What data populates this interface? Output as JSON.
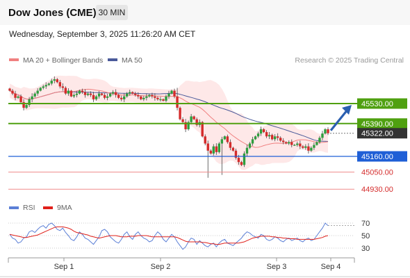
{
  "header": {
    "title": "Dow Jones (CME)",
    "timeframe": "30 MIN"
  },
  "datetime": "Wednesday, September 3, 2025 11:26:20 AM CET",
  "copyright": "Research © 2025 Trading Central",
  "colors": {
    "up": "#2e9e3e",
    "down": "#d42b2b",
    "support": "#1f5fd6",
    "resistance": "#4fa010",
    "band": "#fde0e0",
    "ma20": "#f08080",
    "ma50": "#4a5a9a",
    "rsi": "#5b7fd6",
    "rsi_ma": "#e0201a"
  },
  "chart_data": [
    {
      "type": "candlestick",
      "title": "Dow Jones (CME)",
      "legend": [
        {
          "name": "MA 20 + Bollinger Bands",
          "color": "#f08080"
        },
        {
          "name": "MA 50",
          "color": "#4a5a9a"
        }
      ],
      "ylim": [
        44900,
        45800
      ],
      "x_ticks": [
        "Sep 1",
        "Sep 2",
        "Sep 3",
        "Sep 4"
      ],
      "levels": [
        {
          "value": 45530.0,
          "label": "45530.00",
          "kind": "resistance"
        },
        {
          "value": 45390.0,
          "label": "45390.00",
          "kind": "resistance"
        },
        {
          "value": 45322.0,
          "label": "45322.00",
          "kind": "last"
        },
        {
          "value": 45160.0,
          "label": "45160.00",
          "kind": "support"
        },
        {
          "value": 45050.0,
          "label": "45050.00",
          "kind": "support-minor"
        },
        {
          "value": 44930.0,
          "label": "44930.00",
          "kind": "support-minor"
        }
      ],
      "closes": [
        45620,
        45600,
        45570,
        45580,
        45540,
        45500,
        45520,
        45560,
        45580,
        45600,
        45620,
        45640,
        45650,
        45660,
        45670,
        45690,
        45700,
        45680,
        45650,
        45640,
        45600,
        45620,
        45580,
        45590,
        45600,
        45620,
        45610,
        45590,
        45600,
        45590,
        45560,
        45580,
        45600,
        45590,
        45570,
        45580,
        45600,
        45610,
        45590,
        45570,
        45560,
        45580,
        45600,
        45610,
        45600,
        45590,
        45580,
        45560,
        45570,
        45580,
        45590,
        45580,
        45570,
        45560,
        45560,
        45550,
        45580,
        45600,
        45620,
        45580,
        45500,
        45420,
        45400,
        45350,
        45400,
        45440,
        45420,
        45380,
        45400,
        45300,
        45250,
        45200,
        45180,
        45230,
        45190,
        45250,
        45280,
        45300,
        45260,
        45220,
        45200,
        45150,
        45120,
        45100,
        45180,
        45220,
        45250,
        45280,
        45300,
        45320,
        45350,
        45330,
        45300,
        45310,
        45280,
        45300,
        45290,
        45270,
        45260,
        45250,
        45260,
        45240,
        45240,
        45250,
        45230,
        45220,
        45230,
        45200,
        45220,
        45240,
        45260,
        45290,
        45320,
        45350,
        45322
      ]
    },
    {
      "type": "line",
      "title": "RSI",
      "legend": [
        {
          "name": "RSI",
          "color": "#5b7fd6"
        },
        {
          "name": "9MA",
          "color": "#e0201a"
        }
      ],
      "ylim": [
        20,
        80
      ],
      "y_ticks": [
        70,
        50,
        30
      ],
      "rsi": [
        52,
        46,
        44,
        38,
        40,
        46,
        48,
        56,
        58,
        55,
        60,
        64,
        66,
        62,
        68,
        70,
        66,
        60,
        58,
        62,
        55,
        50,
        44,
        42,
        48,
        56,
        52,
        46,
        44,
        40,
        36,
        42,
        48,
        58,
        60,
        56,
        48,
        44,
        40,
        38,
        44,
        52,
        56,
        48,
        44,
        52,
        56,
        50,
        46,
        44,
        40,
        42,
        50,
        56,
        52,
        44,
        40,
        46,
        52,
        48,
        40,
        34,
        28,
        32,
        40,
        46,
        44,
        36,
        42,
        38,
        34,
        32,
        36,
        38,
        32,
        38,
        42,
        44,
        38,
        36,
        34,
        38,
        42,
        46,
        52,
        56,
        54,
        50,
        48,
        46,
        52,
        50,
        44,
        42,
        44,
        48,
        46,
        42,
        40,
        44,
        46,
        42,
        44,
        46,
        42,
        40,
        44,
        46,
        42,
        44,
        50,
        56,
        62,
        70,
        66
      ],
      "rsi_ma": [
        52,
        51,
        50,
        49,
        48,
        47,
        47,
        48,
        49,
        50,
        51,
        53,
        55,
        57,
        59,
        61,
        63,
        64,
        64,
        64,
        63,
        62,
        60,
        57,
        55,
        54,
        53,
        52,
        51,
        49,
        48,
        47,
        46,
        47,
        48,
        49,
        50,
        50,
        50,
        49,
        48,
        48,
        48,
        49,
        49,
        49,
        50,
        50,
        50,
        50,
        49,
        48,
        48,
        48,
        48,
        48,
        48,
        48,
        48,
        48,
        47,
        45,
        43,
        41,
        40,
        40,
        40,
        40,
        40,
        39,
        39,
        38,
        37,
        37,
        36,
        36,
        37,
        38,
        38,
        38,
        38,
        38,
        38,
        39,
        40,
        42,
        44,
        46,
        47,
        48,
        49,
        49,
        49,
        49,
        48,
        48,
        47,
        47,
        46,
        46,
        45,
        45,
        45,
        44,
        44,
        44,
        44,
        44,
        44,
        44,
        45,
        46,
        47,
        49,
        50
      ]
    }
  ]
}
